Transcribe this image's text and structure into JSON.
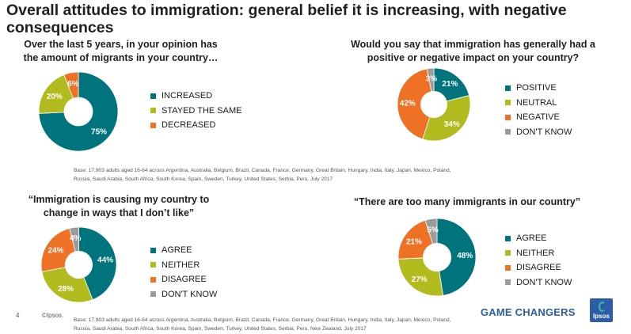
{
  "page": {
    "title": "Overall attitudes to immigration: general belief it is increasing, with negative consequences",
    "footer_number": "4",
    "footer_copyright": "©Ipsos.",
    "game_changers": "GAME CHANGERS",
    "logo_text": "Ipsos"
  },
  "colors": {
    "teal": "#00747d",
    "green": "#b1bb1e",
    "orange": "#ee7125",
    "grey": "#9b9b9b"
  },
  "charts": {
    "c1": {
      "title": "Over the last 5 years, in your opinion has the amount of migrants in your country…",
      "base": "Base: 17,903 adults aged 16-64 across  Argentina, Australia, Belgium, Brazil, Canada, France, Germany, Great Britain, Hungary, India, Italy, Japan, Mexico, Poland, Russia, Saudi Arabia, South Africa, South Korea, Spain, Sweden, Turkey, United States, Serbia, Peru, July 2017"
    },
    "c2": {
      "title": "Would you say that immigration has generally had a positive or negative impact on your country?"
    },
    "c3": {
      "title": "“Immigration is causing my country to change in ways that I don’t like”",
      "base": "Base: 17,903 adults aged 16-64 across  Argentina, Australia, Belgium, Brazil, Canada, France, Germany, Great Britain, Hungary, India, Italy, Japan, Mexico, Poland, Russia, Saudi Arabia, South Africa, South Korea, Spain, Sweden, Turkey, United States, Serbia, Peru, New Zealand,  July 2017"
    },
    "c4": {
      "title": "“There are too many immigrants in our country”"
    }
  },
  "chart_data": [
    {
      "id": "c1",
      "type": "pie",
      "categories": [
        "INCREASED",
        "STAYED THE SAME",
        "DECREASED"
      ],
      "values": [
        75,
        20,
        6
      ],
      "labels": [
        "75%",
        "20%",
        "6%"
      ],
      "colors": [
        "#00747d",
        "#b1bb1e",
        "#ee7125"
      ]
    },
    {
      "id": "c2",
      "type": "pie",
      "categories": [
        "POSITIVE",
        "NEUTRAL",
        "NEGATIVE",
        "DON'T KNOW"
      ],
      "values": [
        21,
        34,
        42,
        3
      ],
      "labels": [
        "21%",
        "34%",
        "42%",
        "3%"
      ],
      "colors": [
        "#00747d",
        "#b1bb1e",
        "#ee7125",
        "#9b9b9b"
      ]
    },
    {
      "id": "c3",
      "type": "pie",
      "categories": [
        "AGREE",
        "NEITHER",
        "DISAGREE",
        "DON'T KNOW"
      ],
      "values": [
        44,
        28,
        24,
        4
      ],
      "labels": [
        "44%",
        "28%",
        "24%",
        "4%"
      ],
      "colors": [
        "#00747d",
        "#b1bb1e",
        "#ee7125",
        "#9b9b9b"
      ]
    },
    {
      "id": "c4",
      "type": "pie",
      "categories": [
        "AGREE",
        "NEITHER",
        "DISAGREE",
        "DON'T KNOW"
      ],
      "values": [
        48,
        27,
        21,
        5
      ],
      "labels": [
        "48%",
        "27%",
        "21%",
        "5%"
      ],
      "colors": [
        "#00747d",
        "#b1bb1e",
        "#ee7125",
        "#9b9b9b"
      ]
    }
  ]
}
